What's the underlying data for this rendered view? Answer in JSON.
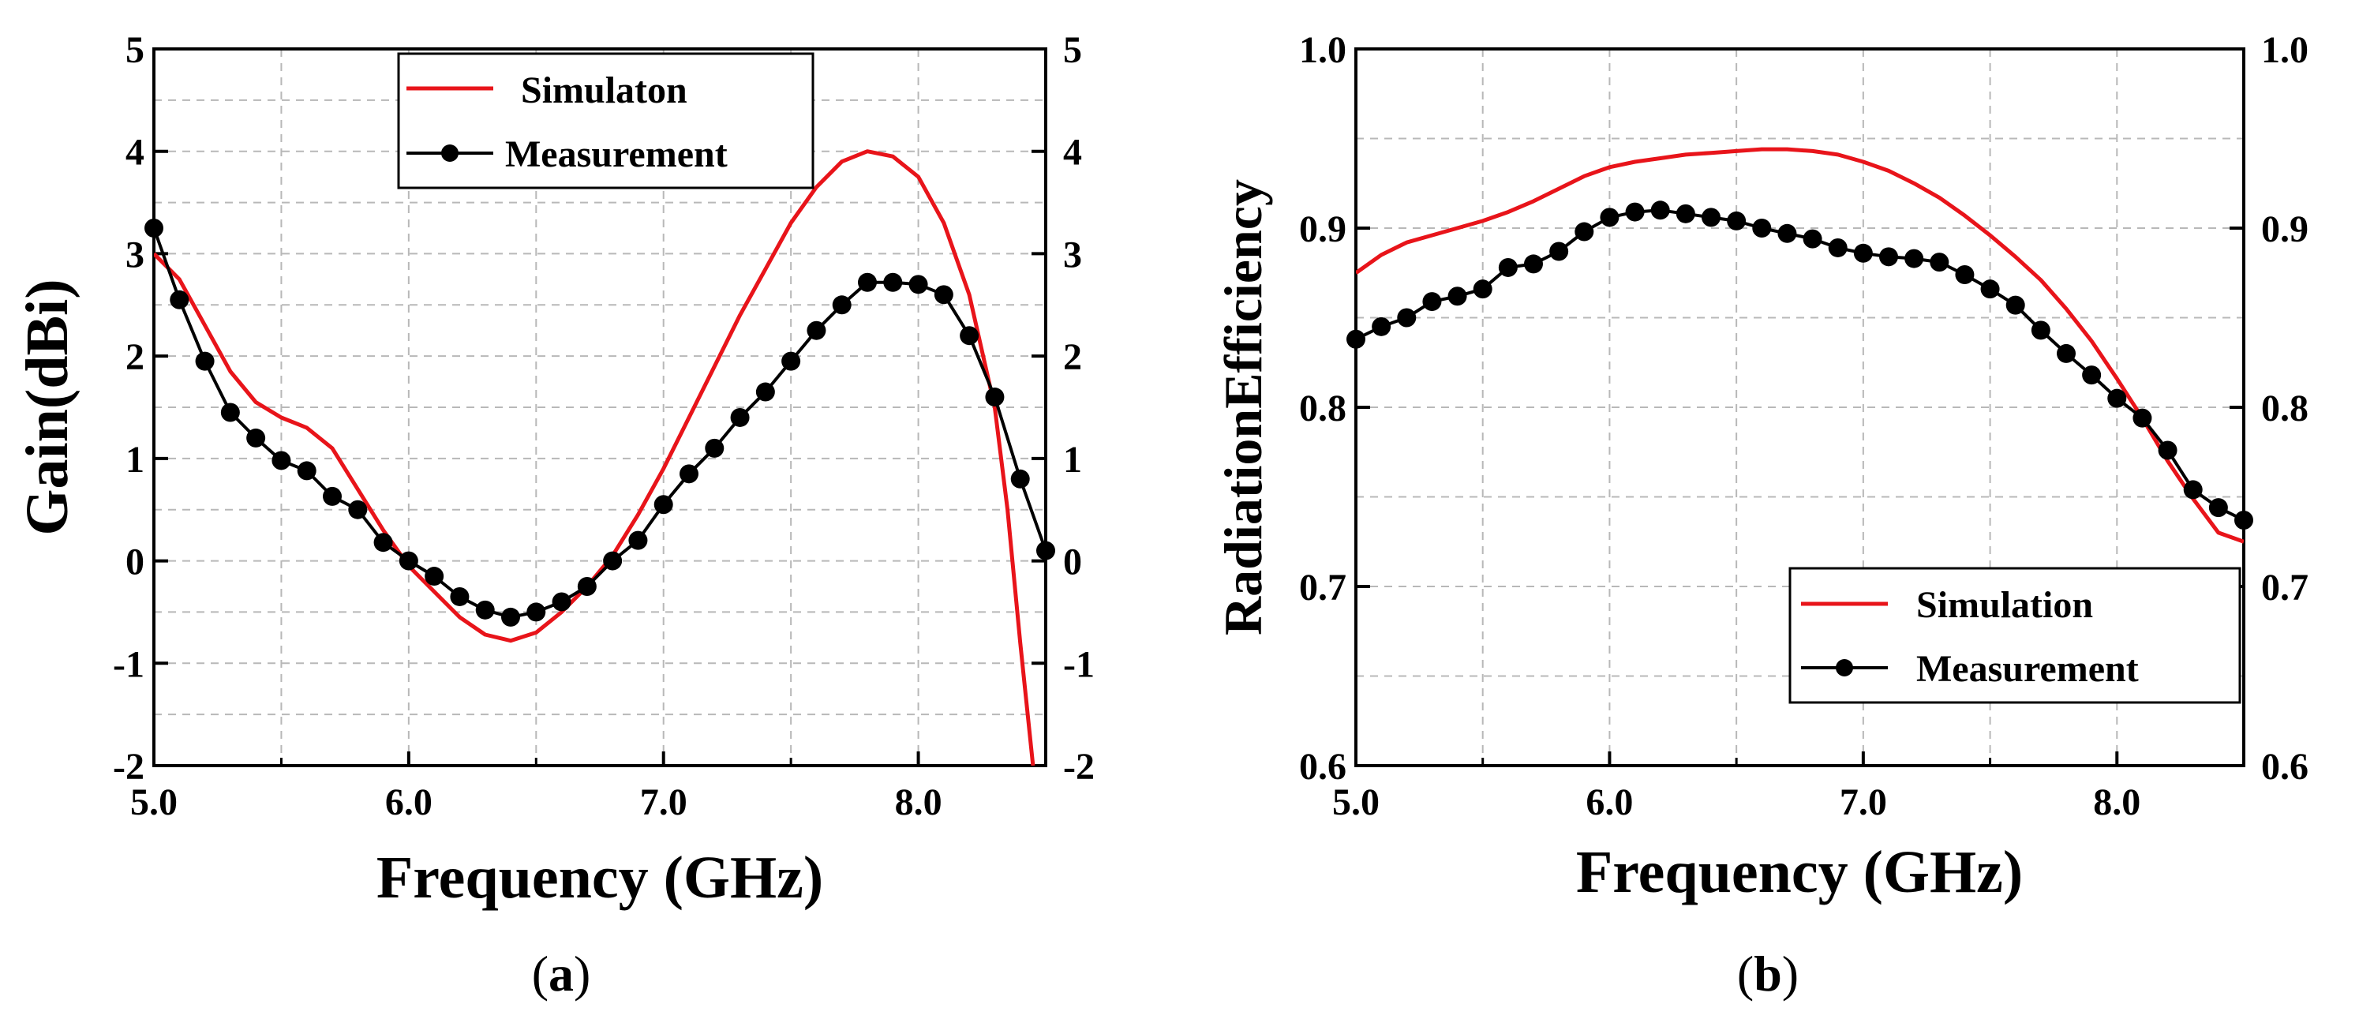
{
  "chart_data": [
    {
      "type": "line",
      "panel_label": "a",
      "xlabel": "Frequency (GHz)",
      "ylabel": "Gain(dBi)",
      "xlim": [
        5.0,
        8.5
      ],
      "ylim": [
        -2,
        5
      ],
      "x_ticks": [
        "5.0",
        "6.0",
        "7.0",
        "8.0"
      ],
      "x_tick_values": [
        5.0,
        6.0,
        7.0,
        8.0
      ],
      "y_ticks": [
        "-2",
        "-1",
        "0",
        "1",
        "2",
        "3",
        "4",
        "5"
      ],
      "y_tick_values": [
        -2,
        -1,
        0,
        1,
        2,
        3,
        4,
        5
      ],
      "right_axis_mirrored": true,
      "grid": true,
      "legend_position": "top-right",
      "series": [
        {
          "name": "Simulaton",
          "color": "#e8141a",
          "marker": "none",
          "x": [
            5.0,
            5.1,
            5.2,
            5.3,
            5.4,
            5.5,
            5.6,
            5.7,
            5.8,
            5.9,
            6.0,
            6.1,
            6.2,
            6.3,
            6.4,
            6.5,
            6.6,
            6.7,
            6.8,
            6.9,
            7.0,
            7.1,
            7.2,
            7.3,
            7.4,
            7.5,
            7.6,
            7.7,
            7.8,
            7.9,
            8.0,
            8.1,
            8.2,
            8.3,
            8.35,
            8.4,
            8.45
          ],
          "y": [
            3.0,
            2.75,
            2.3,
            1.85,
            1.55,
            1.4,
            1.3,
            1.1,
            0.7,
            0.3,
            -0.05,
            -0.3,
            -0.55,
            -0.72,
            -0.78,
            -0.7,
            -0.5,
            -0.25,
            0.05,
            0.45,
            0.9,
            1.4,
            1.9,
            2.4,
            2.85,
            3.3,
            3.65,
            3.9,
            4.0,
            3.95,
            3.75,
            3.3,
            2.6,
            1.5,
            0.5,
            -0.8,
            -2.0
          ]
        },
        {
          "name": "Measurement",
          "color": "#000000",
          "marker": "circle",
          "x": [
            5.0,
            5.1,
            5.2,
            5.3,
            5.4,
            5.5,
            5.6,
            5.7,
            5.8,
            5.9,
            6.0,
            6.1,
            6.2,
            6.3,
            6.4,
            6.5,
            6.6,
            6.7,
            6.8,
            6.9,
            7.0,
            7.1,
            7.2,
            7.3,
            7.4,
            7.5,
            7.6,
            7.7,
            7.8,
            7.9,
            8.0,
            8.1,
            8.2,
            8.3,
            8.4,
            8.5
          ],
          "y": [
            3.25,
            2.55,
            1.95,
            1.45,
            1.2,
            0.98,
            0.88,
            0.63,
            0.5,
            0.18,
            0.0,
            -0.15,
            -0.35,
            -0.48,
            -0.55,
            -0.5,
            -0.4,
            -0.25,
            0.0,
            0.2,
            0.55,
            0.85,
            1.1,
            1.4,
            1.65,
            1.95,
            2.25,
            2.5,
            2.72,
            2.72,
            2.7,
            2.6,
            2.2,
            1.6,
            0.8,
            0.1
          ]
        }
      ]
    },
    {
      "type": "line",
      "panel_label": "b",
      "xlabel": "Frequency (GHz)",
      "ylabel": "RadiationEfficiency",
      "xlim": [
        5.0,
        8.5
      ],
      "ylim": [
        0.6,
        1.0
      ],
      "x_ticks": [
        "5.0",
        "6.0",
        "7.0",
        "8.0"
      ],
      "x_tick_values": [
        5.0,
        6.0,
        7.0,
        8.0
      ],
      "y_ticks": [
        "0.6",
        "0.7",
        "0.8",
        "0.9",
        "1.0"
      ],
      "y_tick_values": [
        0.6,
        0.7,
        0.8,
        0.9,
        1.0
      ],
      "right_axis_mirrored": true,
      "grid": true,
      "legend_position": "bottom-right",
      "series": [
        {
          "name": "Simulation",
          "color": "#e8141a",
          "marker": "none",
          "x": [
            5.0,
            5.1,
            5.2,
            5.3,
            5.4,
            5.5,
            5.6,
            5.7,
            5.8,
            5.9,
            6.0,
            6.1,
            6.2,
            6.3,
            6.4,
            6.5,
            6.6,
            6.7,
            6.8,
            6.9,
            7.0,
            7.1,
            7.2,
            7.3,
            7.4,
            7.5,
            7.6,
            7.7,
            7.8,
            7.9,
            8.0,
            8.1,
            8.2,
            8.3,
            8.4,
            8.5
          ],
          "y": [
            0.875,
            0.885,
            0.892,
            0.896,
            0.9,
            0.904,
            0.909,
            0.915,
            0.922,
            0.929,
            0.934,
            0.937,
            0.939,
            0.941,
            0.942,
            0.943,
            0.944,
            0.944,
            0.943,
            0.941,
            0.937,
            0.932,
            0.925,
            0.917,
            0.907,
            0.896,
            0.884,
            0.871,
            0.855,
            0.837,
            0.816,
            0.794,
            0.77,
            0.749,
            0.73,
            0.725
          ]
        },
        {
          "name": "Measurement",
          "color": "#000000",
          "marker": "circle",
          "x": [
            5.0,
            5.1,
            5.2,
            5.3,
            5.4,
            5.5,
            5.6,
            5.7,
            5.8,
            5.9,
            6.0,
            6.1,
            6.2,
            6.3,
            6.4,
            6.5,
            6.6,
            6.7,
            6.8,
            6.9,
            7.0,
            7.1,
            7.2,
            7.3,
            7.4,
            7.5,
            7.6,
            7.7,
            7.8,
            7.9,
            8.0,
            8.1,
            8.2,
            8.3,
            8.4,
            8.5
          ],
          "y": [
            0.838,
            0.845,
            0.85,
            0.859,
            0.862,
            0.866,
            0.878,
            0.88,
            0.887,
            0.898,
            0.906,
            0.909,
            0.91,
            0.908,
            0.906,
            0.904,
            0.9,
            0.897,
            0.894,
            0.889,
            0.886,
            0.884,
            0.883,
            0.881,
            0.874,
            0.866,
            0.857,
            0.843,
            0.83,
            0.818,
            0.805,
            0.794,
            0.776,
            0.754,
            0.744,
            0.737
          ]
        }
      ]
    }
  ],
  "captions": {
    "a": {
      "open": "(",
      "letter": "a",
      "close": ")"
    },
    "b": {
      "open": "(",
      "letter": "b",
      "close": ")"
    }
  }
}
